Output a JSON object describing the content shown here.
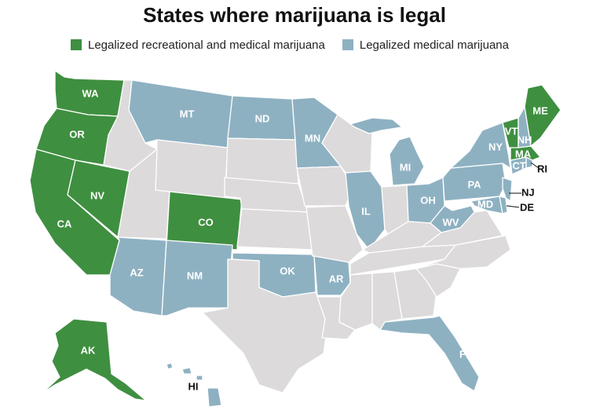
{
  "title": "States where marijuana is legal",
  "colors": {
    "recreational": "#3f8f40",
    "medical": "#8eb1c2",
    "none": "#dcdadb"
  },
  "legend": [
    {
      "key": "recreational",
      "label": "Legalized recreational and medical marijuana"
    },
    {
      "key": "medical",
      "label": "Legalized medical marijuana"
    }
  ],
  "states": {
    "recreational": [
      "WA",
      "OR",
      "CA",
      "NV",
      "CO",
      "AK",
      "ME",
      "VT",
      "MA"
    ],
    "medical": [
      "MT",
      "ND",
      "MN",
      "MI",
      "NY",
      "NH",
      "CT",
      "RI",
      "PA",
      "NJ",
      "DE",
      "MD",
      "OH",
      "WV",
      "IL",
      "AZ",
      "NM",
      "OK",
      "AR",
      "FL",
      "HI"
    ]
  },
  "labels": {
    "WA": "WA",
    "OR": "OR",
    "CA": "CA",
    "NV": "NV",
    "CO": "CO",
    "AK": "AK",
    "ME": "ME",
    "VT": "VT",
    "MA": "MA",
    "MT": "MT",
    "ND": "ND",
    "MN": "MN",
    "MI": "MI",
    "NY": "NY",
    "NH": "NH",
    "CT": "CT",
    "RI": "RI",
    "PA": "PA",
    "NJ": "NJ",
    "DE": "DE",
    "MD": "MD",
    "OH": "OH",
    "WV": "WV",
    "IL": "IL",
    "AZ": "AZ",
    "NM": "NM",
    "OK": "OK",
    "AR": "AR",
    "FL": "FL",
    "HI": "HI"
  }
}
